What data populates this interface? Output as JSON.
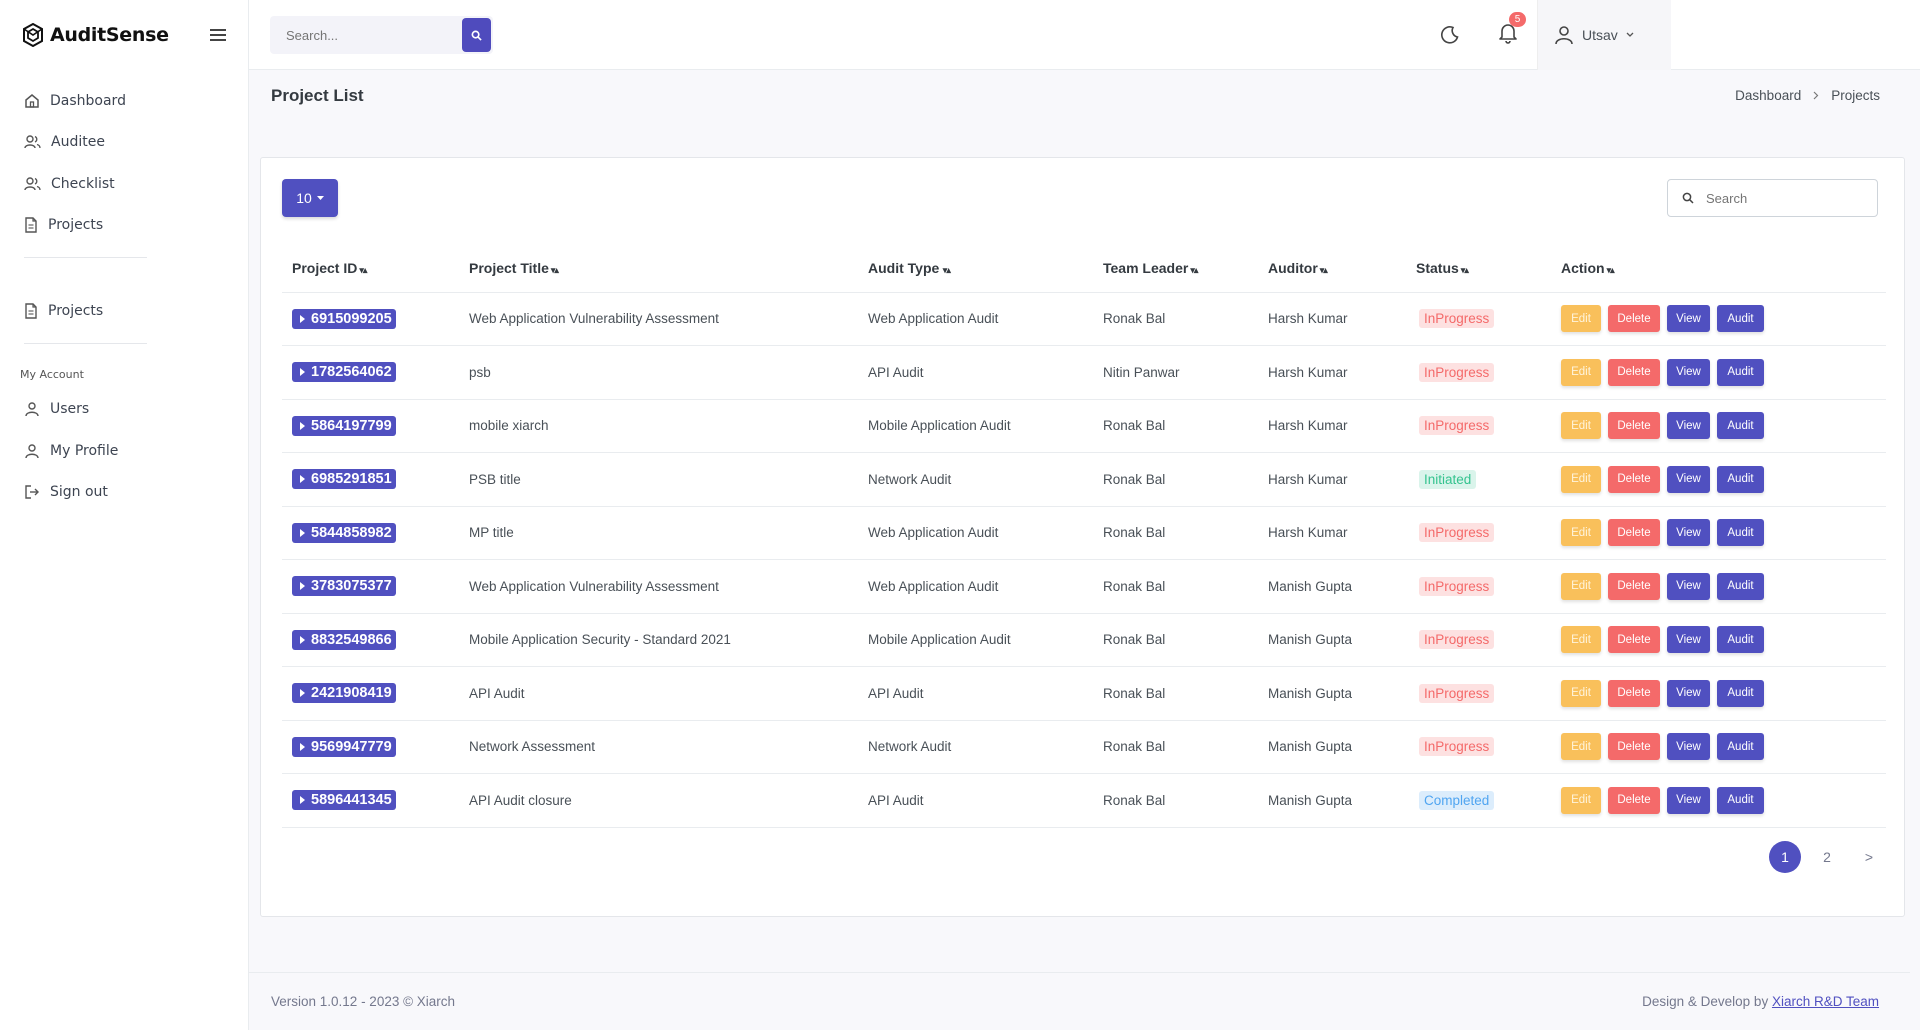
{
  "brand": {
    "name": "AuditSense"
  },
  "nav": {
    "main": [
      {
        "label": "Dashboard",
        "icon": "home-icon"
      },
      {
        "label": "Auditee",
        "icon": "users-icon"
      },
      {
        "label": "Checklist",
        "icon": "users-icon"
      },
      {
        "label": "Projects",
        "icon": "file-icon"
      }
    ],
    "secondary": [
      {
        "label": "Projects",
        "icon": "file-icon"
      }
    ],
    "account_heading": "My Account",
    "account": [
      {
        "label": "Users",
        "icon": "user-icon"
      },
      {
        "label": "My Profile",
        "icon": "user-icon"
      },
      {
        "label": "Sign out",
        "icon": "sign-out-icon"
      }
    ]
  },
  "topbar": {
    "search_placeholder": "Search...",
    "notifications_count": "5",
    "user_name": "Utsav"
  },
  "page": {
    "title": "Project List",
    "breadcrumb": [
      "Dashboard",
      "Projects"
    ]
  },
  "table": {
    "page_length": "10",
    "search_placeholder": "Search",
    "columns": [
      "Project ID",
      "Project Title",
      "Audit Type",
      "Team Leader",
      "Auditor",
      "Status",
      "Action"
    ],
    "actions": {
      "edit": "Edit",
      "delete": "Delete",
      "view": "View",
      "audit": "Audit"
    },
    "rows": [
      {
        "id": "6915099205",
        "title": "Web Application Vulnerability Assessment",
        "type": "Web Application Audit",
        "leader": "Ronak Bal",
        "auditor": "Harsh Kumar",
        "status": "InProgress"
      },
      {
        "id": "1782564062",
        "title": "psb",
        "type": "API Audit",
        "leader": "Nitin Panwar",
        "auditor": "Harsh Kumar",
        "status": "InProgress"
      },
      {
        "id": "5864197799",
        "title": "mobile xiarch",
        "type": "Mobile Application Audit",
        "leader": "Ronak Bal",
        "auditor": "Harsh Kumar",
        "status": "InProgress"
      },
      {
        "id": "6985291851",
        "title": "PSB title",
        "type": "Network Audit",
        "leader": "Ronak Bal",
        "auditor": "Harsh Kumar",
        "status": "Initiated"
      },
      {
        "id": "5844858982",
        "title": "MP title",
        "type": "Web Application Audit",
        "leader": "Ronak Bal",
        "auditor": "Harsh Kumar",
        "status": "InProgress"
      },
      {
        "id": "3783075377",
        "title": "Web Application Vulnerability Assessment",
        "type": "Web Application Audit",
        "leader": "Ronak Bal",
        "auditor": "Manish Gupta",
        "status": "InProgress"
      },
      {
        "id": "8832549866",
        "title": "Mobile Application Security - Standard 2021",
        "type": "Mobile Application Audit",
        "leader": "Ronak Bal",
        "auditor": "Manish Gupta",
        "status": "InProgress"
      },
      {
        "id": "2421908419",
        "title": "API Audit",
        "type": "API Audit",
        "leader": "Ronak Bal",
        "auditor": "Manish Gupta",
        "status": "InProgress"
      },
      {
        "id": "9569947779",
        "title": "Network Assessment",
        "type": "Network Audit",
        "leader": "Ronak Bal",
        "auditor": "Manish Gupta",
        "status": "InProgress"
      },
      {
        "id": "5896441345",
        "title": "API Audit closure",
        "type": "API Audit",
        "leader": "Ronak Bal",
        "auditor": "Manish Gupta",
        "status": "Completed"
      }
    ]
  },
  "pagination": {
    "pages": [
      "1",
      "2"
    ],
    "current": "1",
    "next": ">"
  },
  "footer": {
    "left": "Version 1.0.12 - 2023 © Xiarch",
    "right_prefix": "Design & Develop by ",
    "right_link": "Xiarch R&D Team"
  },
  "colors": {
    "primary": "#5050c0",
    "warning": "#f9c05b",
    "danger": "#f46a6a",
    "success": "#34c38f",
    "info": "#50a5f1"
  }
}
